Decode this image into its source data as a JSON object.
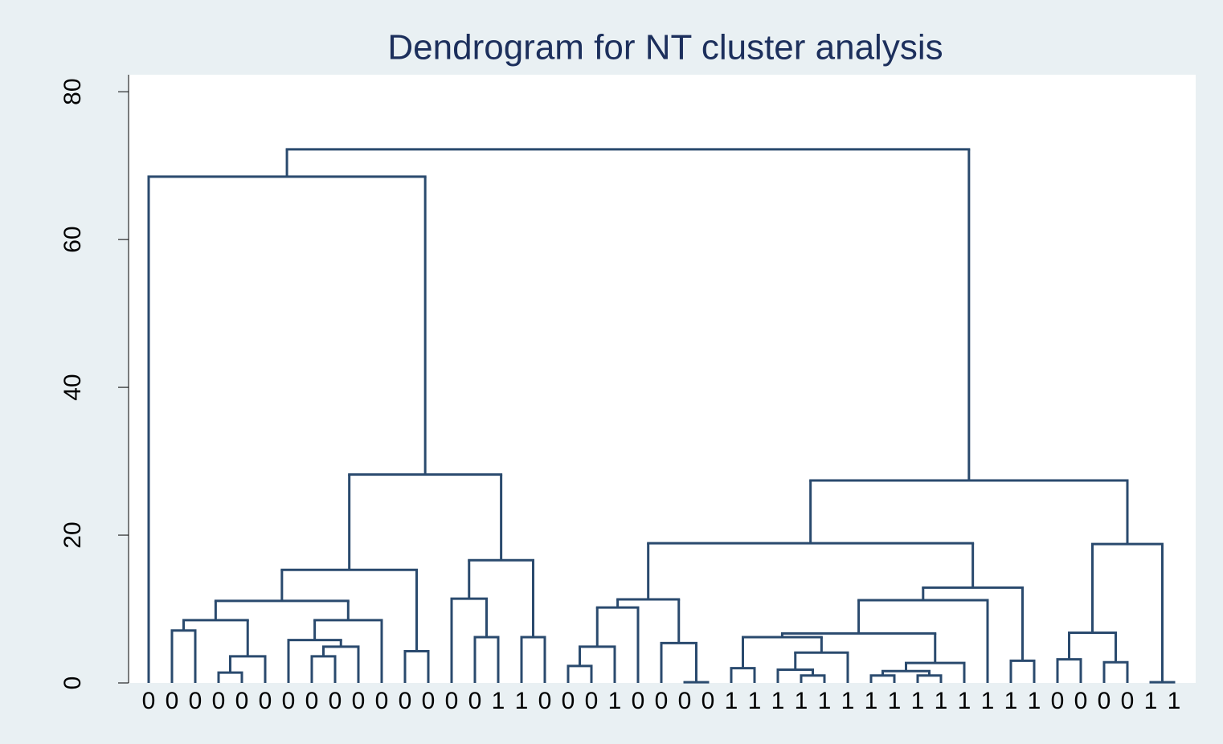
{
  "chart_data": {
    "type": "dendrogram",
    "title": "Dendrogram for NT cluster analysis",
    "color": "#2a4a6e",
    "ylim": [
      0,
      82.3
    ],
    "yticks": [
      0,
      20,
      40,
      60,
      80
    ],
    "tree": {
      "height": 72.2,
      "children": [
        {
          "height": 68.5,
          "children": [
            {
              "label": "0"
            },
            {
              "height": 28.2,
              "children": [
                {
                  "height": 15.3,
                  "children": [
                    {
                      "height": 11.1,
                      "children": [
                        {
                          "height": 8.5,
                          "children": [
                            {
                              "height": 7.1,
                              "children": [
                                {
                                  "label": "0"
                                },
                                {
                                  "label": "0"
                                }
                              ]
                            },
                            {
                              "height": 3.6,
                              "children": [
                                {
                                  "height": 1.4,
                                  "children": [
                                    {
                                      "label": "0"
                                    },
                                    {
                                      "label": "0"
                                    }
                                  ]
                                },
                                {
                                  "label": "0"
                                }
                              ]
                            }
                          ]
                        },
                        {
                          "height": 8.5,
                          "children": [
                            {
                              "height": 5.8,
                              "children": [
                                {
                                  "label": "0"
                                },
                                {
                                  "height": 4.9,
                                  "children": [
                                    {
                                      "height": 3.6,
                                      "children": [
                                        {
                                          "label": "0"
                                        },
                                        {
                                          "label": "0"
                                        }
                                      ]
                                    },
                                    {
                                      "label": "0"
                                    }
                                  ]
                                }
                              ]
                            },
                            {
                              "label": "0"
                            }
                          ]
                        }
                      ]
                    },
                    {
                      "height": 4.3,
                      "children": [
                        {
                          "label": "0"
                        },
                        {
                          "label": "0"
                        }
                      ]
                    }
                  ]
                },
                {
                  "height": 16.6,
                  "children": [
                    {
                      "height": 11.4,
                      "children": [
                        {
                          "label": "0"
                        },
                        {
                          "height": 6.2,
                          "children": [
                            {
                              "label": "0"
                            },
                            {
                              "label": "1"
                            }
                          ]
                        }
                      ]
                    },
                    {
                      "height": 6.2,
                      "children": [
                        {
                          "label": "1"
                        },
                        {
                          "label": "0"
                        }
                      ]
                    }
                  ]
                }
              ]
            }
          ]
        },
        {
          "height": 27.4,
          "children": [
            {
              "height": 18.9,
              "children": [
                {
                  "height": 11.3,
                  "children": [
                    {
                      "height": 10.2,
                      "children": [
                        {
                          "height": 4.9,
                          "children": [
                            {
                              "height": 2.3,
                              "children": [
                                {
                                  "label": "0"
                                },
                                {
                                  "label": "0"
                                }
                              ]
                            },
                            {
                              "label": "1"
                            }
                          ]
                        },
                        {
                          "label": "0"
                        }
                      ]
                    },
                    {
                      "height": 5.4,
                      "children": [
                        {
                          "label": "0"
                        },
                        {
                          "height": 0.1,
                          "children": [
                            {
                              "label": "0"
                            },
                            {
                              "label": "0"
                            }
                          ]
                        }
                      ]
                    }
                  ]
                },
                {
                  "height": 12.9,
                  "children": [
                    {
                      "height": 11.2,
                      "children": [
                        {
                          "height": 6.7,
                          "children": [
                            {
                              "height": 6.2,
                              "children": [
                                {
                                  "height": 2.0,
                                  "children": [
                                    {
                                      "label": "1"
                                    },
                                    {
                                      "label": "1"
                                    }
                                  ]
                                },
                                {
                                  "height": 4.1,
                                  "children": [
                                    {
                                      "height": 1.8,
                                      "children": [
                                        {
                                          "label": "1"
                                        },
                                        {
                                          "height": 1.0,
                                          "children": [
                                            {
                                              "label": "1"
                                            },
                                            {
                                              "label": "1"
                                            }
                                          ]
                                        }
                                      ]
                                    },
                                    {
                                      "label": "1"
                                    }
                                  ]
                                }
                              ]
                            },
                            {
                              "height": 2.7,
                              "children": [
                                {
                                  "height": 1.6,
                                  "children": [
                                    {
                                      "height": 1.0,
                                      "children": [
                                        {
                                          "label": "1"
                                        },
                                        {
                                          "label": "1"
                                        }
                                      ]
                                    },
                                    {
                                      "height": 1.0,
                                      "children": [
                                        {
                                          "label": "1"
                                        },
                                        {
                                          "label": "1"
                                        }
                                      ]
                                    }
                                  ]
                                },
                                {
                                  "label": "1"
                                }
                              ]
                            }
                          ]
                        },
                        {
                          "label": "1"
                        }
                      ]
                    },
                    {
                      "height": 3.0,
                      "children": [
                        {
                          "label": "1"
                        },
                        {
                          "label": "1"
                        }
                      ]
                    }
                  ]
                }
              ]
            },
            {
              "height": 18.8,
              "children": [
                {
                  "height": 6.8,
                  "children": [
                    {
                      "height": 3.2,
                      "children": [
                        {
                          "label": "0"
                        },
                        {
                          "label": "0"
                        }
                      ]
                    },
                    {
                      "height": 2.8,
                      "children": [
                        {
                          "label": "0"
                        },
                        {
                          "label": "0"
                        }
                      ]
                    }
                  ]
                },
                {
                  "height": 0.1,
                  "children": [
                    {
                      "label": "1"
                    },
                    {
                      "label": "1"
                    }
                  ]
                }
              ]
            }
          ]
        }
      ]
    }
  }
}
